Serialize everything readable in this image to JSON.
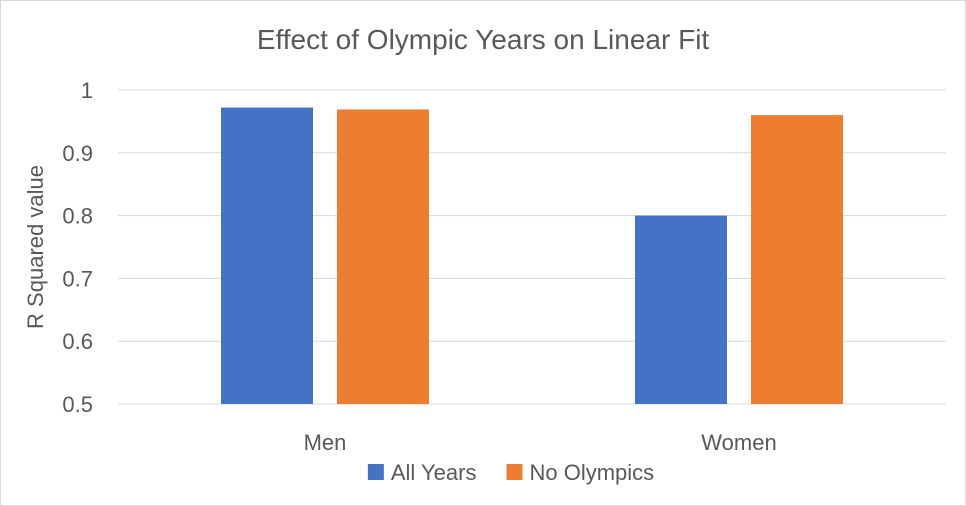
{
  "chart_data": {
    "type": "bar",
    "title": "Effect of Olympic Years on Linear Fit",
    "xlabel": "",
    "ylabel": "R Squared value",
    "categories": [
      "Men",
      "Women"
    ],
    "series": [
      {
        "name": "All Years",
        "values": [
          0.972,
          0.8
        ],
        "color": "#4472C4"
      },
      {
        "name": "No Olympics",
        "values": [
          0.969,
          0.96
        ],
        "color": "#ED7D31"
      }
    ],
    "ylim": [
      0.5,
      1
    ],
    "yticks": [
      "0.5",
      "0.6",
      "0.7",
      "0.8",
      "0.9",
      "1"
    ],
    "grid": true,
    "legend_position": "bottom"
  }
}
